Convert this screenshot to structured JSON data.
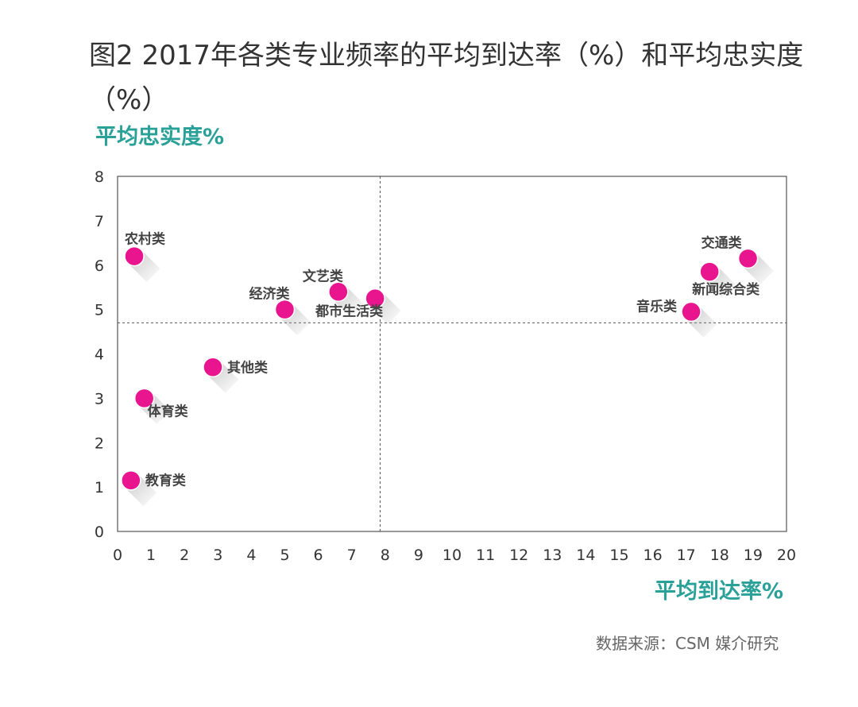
{
  "title_line1": "图2 2017年各类专业频率的平均到达率（%）和平均忠实度",
  "title_line2": "（%）",
  "source": "数据来源：CSM 媒介研究",
  "chart_data": {
    "type": "scatter",
    "xlabel": "平均到达率%",
    "ylabel": "平均忠实度%",
    "xlim": [
      0,
      20
    ],
    "ylim": [
      0,
      8
    ],
    "x_ticks": [
      0,
      1,
      2,
      3,
      4,
      5,
      6,
      7,
      8,
      9,
      10,
      11,
      12,
      13,
      14,
      15,
      16,
      17,
      18,
      19,
      20
    ],
    "y_ticks": [
      0,
      1,
      2,
      3,
      4,
      5,
      6,
      7,
      8
    ],
    "reference_lines": {
      "x": 7.85,
      "y": 4.7
    },
    "marker_color": "#e8158f",
    "points": [
      {
        "label": "农村类",
        "x": 0.5,
        "y": 6.2,
        "label_pos": "above-right"
      },
      {
        "label": "教育类",
        "x": 0.4,
        "y": 1.15,
        "label_pos": "right"
      },
      {
        "label": "体育类",
        "x": 0.8,
        "y": 3.0,
        "label_pos": "below-right"
      },
      {
        "label": "其他类",
        "x": 2.85,
        "y": 3.7,
        "label_pos": "right"
      },
      {
        "label": "经济类",
        "x": 5.0,
        "y": 5.0,
        "label_pos": "above-left"
      },
      {
        "label": "文艺类",
        "x": 6.6,
        "y": 5.4,
        "label_pos": "above-left"
      },
      {
        "label": "都市生活类",
        "x": 7.7,
        "y": 5.25,
        "label_pos": "below-left"
      },
      {
        "label": "音乐类",
        "x": 17.15,
        "y": 4.95,
        "label_pos": "left"
      },
      {
        "label": "新闻综合类",
        "x": 17.7,
        "y": 5.85,
        "label_pos": "below-right"
      },
      {
        "label": "交通类",
        "x": 18.85,
        "y": 6.15,
        "label_pos": "above-left"
      }
    ]
  }
}
